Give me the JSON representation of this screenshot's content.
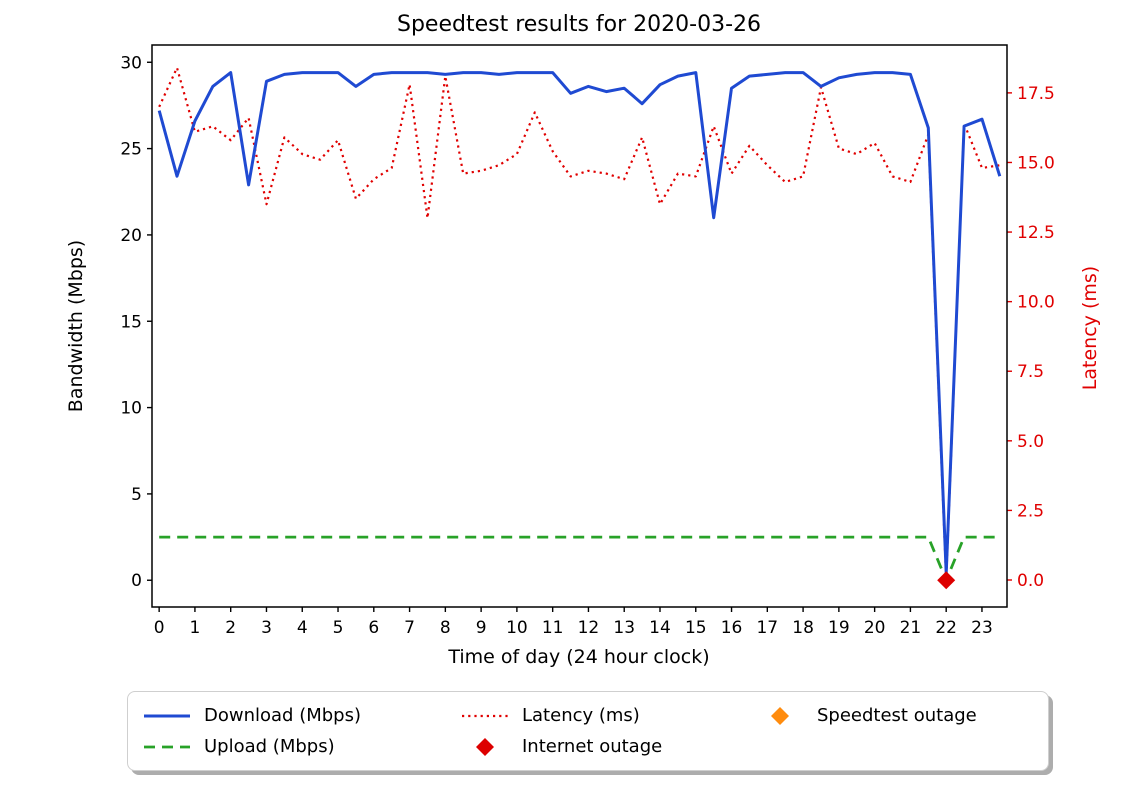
{
  "chart_data": {
    "type": "line",
    "title": "Speedtest results for 2020-03-26",
    "xlabel": "Time of day (24 hour clock)",
    "ylabel_left": "Bandwidth (Mbps)",
    "ylabel_right": "Latency (ms)",
    "xlim": [
      -0.2,
      23.7
    ],
    "ylim_left": [
      -1.55,
      31.0
    ],
    "ylim_right": [
      -0.97,
      19.22
    ],
    "grid": false,
    "legend_position": "bottom",
    "xticks": {
      "values": [
        0,
        1,
        2,
        3,
        4,
        5,
        6,
        7,
        8,
        9,
        10,
        11,
        12,
        13,
        14,
        15,
        16,
        17,
        18,
        19,
        20,
        21,
        22,
        23
      ],
      "labels": [
        "0",
        "1",
        "2",
        "3",
        "4",
        "5",
        "6",
        "7",
        "8",
        "9",
        "10",
        "11",
        "12",
        "13",
        "14",
        "15",
        "16",
        "17",
        "18",
        "19",
        "20",
        "21",
        "22",
        "23"
      ]
    },
    "yticks_left": {
      "values": [
        0,
        5,
        10,
        15,
        20,
        25,
        30
      ],
      "labels": [
        "0",
        "5",
        "10",
        "15",
        "20",
        "25",
        "30"
      ]
    },
    "yticks_right": {
      "values": [
        0,
        2.5,
        5,
        7.5,
        10,
        12.5,
        15,
        17.5
      ],
      "labels": [
        "0.0",
        "2.5",
        "5.0",
        "7.5",
        "10.0",
        "12.5",
        "15.0",
        "17.5"
      ]
    },
    "x": [
      0,
      0.5,
      1,
      1.5,
      2,
      2.5,
      3,
      3.5,
      4,
      4.5,
      5,
      5.5,
      6,
      6.5,
      7,
      7.5,
      8,
      8.5,
      9,
      9.5,
      10,
      10.5,
      11,
      11.5,
      12,
      12.5,
      13,
      13.5,
      14,
      14.5,
      15,
      15.5,
      16,
      16.5,
      17,
      17.5,
      18,
      18.5,
      19,
      19.5,
      20,
      20.5,
      21,
      21.5,
      22,
      22.5,
      23,
      23.5
    ],
    "series": [
      {
        "name": "Download (Mbps)",
        "axis": "left",
        "color": "#1f4ad2",
        "style": "solid",
        "values": [
          27.2,
          23.4,
          26.6,
          28.6,
          29.4,
          22.9,
          28.9,
          29.3,
          29.4,
          29.4,
          29.4,
          28.6,
          29.3,
          29.4,
          29.4,
          29.4,
          29.3,
          29.4,
          29.4,
          29.3,
          29.4,
          29.4,
          29.4,
          28.2,
          28.6,
          28.3,
          28.5,
          27.6,
          28.7,
          29.2,
          29.4,
          21.0,
          28.5,
          29.2,
          29.3,
          29.4,
          29.4,
          28.6,
          29.1,
          29.3,
          29.4,
          29.4,
          29.3,
          26.2,
          0.4,
          26.3,
          26.7,
          23.4
        ]
      },
      {
        "name": "Upload (Mbps)",
        "axis": "left",
        "color": "#28a228",
        "style": "dashed",
        "values": [
          2.5,
          2.5,
          2.5,
          2.5,
          2.5,
          2.5,
          2.5,
          2.5,
          2.5,
          2.5,
          2.5,
          2.5,
          2.5,
          2.5,
          2.5,
          2.5,
          2.5,
          2.5,
          2.5,
          2.5,
          2.5,
          2.5,
          2.5,
          2.5,
          2.5,
          2.5,
          2.5,
          2.5,
          2.5,
          2.5,
          2.5,
          2.5,
          2.5,
          2.5,
          2.5,
          2.5,
          2.5,
          2.5,
          2.5,
          2.5,
          2.5,
          2.5,
          2.5,
          2.5,
          0.0,
          2.5,
          2.5,
          2.5
        ]
      },
      {
        "name": "Latency (ms)",
        "axis": "right",
        "color": "#e00000",
        "style": "dotted",
        "values": [
          17.0,
          18.4,
          16.1,
          16.3,
          15.8,
          16.6,
          13.5,
          15.9,
          15.3,
          15.1,
          15.8,
          13.7,
          14.4,
          14.8,
          17.8,
          13.0,
          18.1,
          14.6,
          14.7,
          14.9,
          15.3,
          16.8,
          15.4,
          14.5,
          14.7,
          14.6,
          14.4,
          15.9,
          13.5,
          14.6,
          14.5,
          16.3,
          14.6,
          15.6,
          14.9,
          14.3,
          14.5,
          17.7,
          15.5,
          15.3,
          15.7,
          14.5,
          14.3,
          16.0,
          0.0,
          16.4,
          14.8,
          14.9
        ]
      }
    ],
    "markers": [
      {
        "name": "Internet outage",
        "color": "#dd0000",
        "shape": "diamond",
        "axis": "left",
        "points": [
          [
            22,
            0
          ]
        ]
      },
      {
        "name": "Speedtest outage",
        "color": "#ff8c0e",
        "shape": "diamond",
        "axis": "left",
        "points": []
      }
    ],
    "axis_colors": {
      "left": "#000000",
      "right": "#e00000"
    }
  }
}
